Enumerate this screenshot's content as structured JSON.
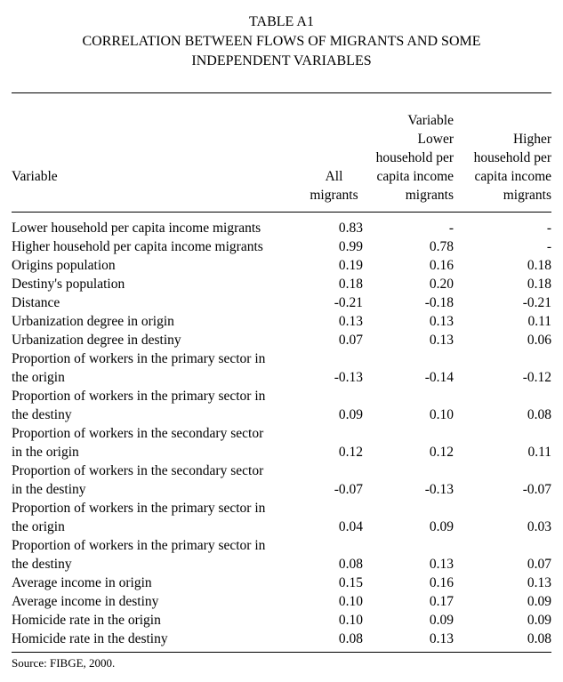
{
  "title": {
    "label": "TABLE A1",
    "line1": "CORRELATION BETWEEN FLOWS OF MIGRANTS AND SOME",
    "line2": "INDEPENDENT VARIABLES"
  },
  "table": {
    "headers": {
      "variable": "Variable",
      "all_migrants": "All\nmigrants",
      "lower": "Variable\nLower\nhousehold per\ncapita income\nmigrants",
      "higher": "Higher\nhousehold per\ncapita income\nmigrants"
    },
    "rows": [
      {
        "label": "Lower household per capita income migrants",
        "all": "0.83",
        "lower": "-",
        "higher": "-"
      },
      {
        "label": "Higher household per capita income migrants",
        "all": "0.99",
        "lower": "0.78",
        "higher": "-"
      },
      {
        "label": "Origins population",
        "all": "0.19",
        "lower": "0.16",
        "higher": "0.18"
      },
      {
        "label": "Destiny's population",
        "all": "0.18",
        "lower": "0.20",
        "higher": "0.18"
      },
      {
        "label": "Distance",
        "all": "-0.21",
        "lower": "-0.18",
        "higher": "-0.21"
      },
      {
        "label": "Urbanization degree in origin",
        "all": "0.13",
        "lower": "0.13",
        "higher": "0.11"
      },
      {
        "label": "Urbanization degree in destiny",
        "all": "0.07",
        "lower": "0.13",
        "higher": "0.06"
      },
      {
        "label": "Proportion of workers in the primary sector in\nthe origin",
        "all": "-0.13",
        "lower": "-0.14",
        "higher": "-0.12"
      },
      {
        "label": "Proportion of workers in the primary sector in\nthe destiny",
        "all": "0.09",
        "lower": "0.10",
        "higher": "0.08"
      },
      {
        "label": "Proportion of workers in the secondary sector\nin the origin",
        "all": "0.12",
        "lower": "0.12",
        "higher": "0.11"
      },
      {
        "label": "Proportion of workers in the secondary sector\nin the destiny",
        "all": "-0.07",
        "lower": "-0.13",
        "higher": "-0.07"
      },
      {
        "label": "Proportion of workers in the primary sector in\nthe origin",
        "all": "0.04",
        "lower": "0.09",
        "higher": "0.03"
      },
      {
        "label": "Proportion of workers in the primary sector in\nthe destiny",
        "all": "0.08",
        "lower": "0.13",
        "higher": "0.07"
      },
      {
        "label": "Average income in origin",
        "all": "0.15",
        "lower": "0.16",
        "higher": "0.13"
      },
      {
        "label": "Average income in destiny",
        "all": "0.10",
        "lower": "0.17",
        "higher": "0.09"
      },
      {
        "label": "Homicide rate in the origin",
        "all": "0.10",
        "lower": "0.09",
        "higher": "0.09"
      },
      {
        "label": "Homicide rate in the destiny",
        "all": "0.08",
        "lower": "0.13",
        "higher": "0.08"
      }
    ]
  },
  "source": "Source: FIBGE, 2000."
}
